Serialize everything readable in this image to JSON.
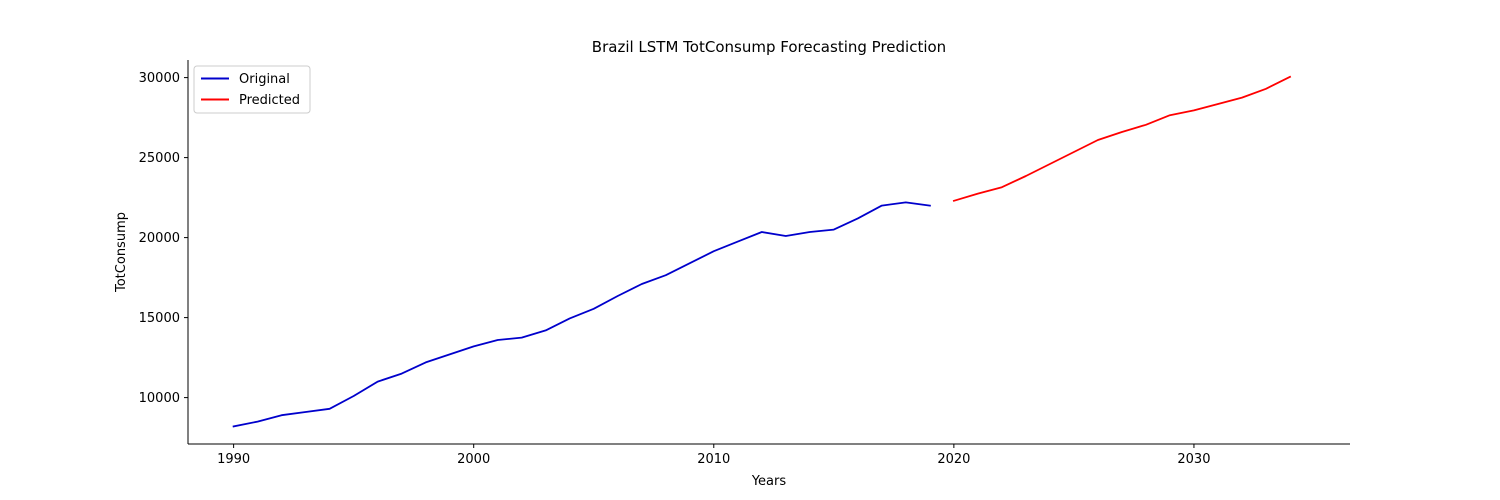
{
  "chart_data": {
    "type": "line",
    "title": "Brazil LSTM TotConsump Forecasting Prediction",
    "xlabel": "Years",
    "ylabel": "TotConsump",
    "xlim": [
      1988.1,
      2036.5
    ],
    "ylim": [
      7100,
      31100
    ],
    "xticks": [
      1990,
      2000,
      2010,
      2020,
      2030
    ],
    "yticks": [
      10000,
      15000,
      20000,
      25000,
      30000
    ],
    "grid": false,
    "legend_position": "top-left",
    "series": [
      {
        "name": "Original",
        "color": "#0000cc",
        "x": [
          1990,
          1991,
          1992,
          1993,
          1994,
          1995,
          1996,
          1997,
          1998,
          1999,
          2000,
          2001,
          2002,
          2003,
          2004,
          2005,
          2006,
          2007,
          2008,
          2009,
          2010,
          2011,
          2012,
          2013,
          2014,
          2015,
          2016,
          2017,
          2018,
          2019
        ],
        "y": [
          8200,
          8500,
          8900,
          9100,
          9300,
          10100,
          11000,
          11500,
          12200,
          12700,
          13200,
          13600,
          13750,
          14200,
          14950,
          15550,
          16350,
          17100,
          17650,
          18400,
          19150,
          19750,
          20350,
          20100,
          20350,
          20500,
          21200,
          22000,
          22200,
          22000
        ]
      },
      {
        "name": "Predicted",
        "color": "#ff0000",
        "x": [
          2020,
          2021,
          2022,
          2023,
          2024,
          2025,
          2026,
          2027,
          2028,
          2029,
          2030,
          2031,
          2032,
          2033,
          2034
        ],
        "y": [
          22300,
          22750,
          23150,
          23850,
          24600,
          25350,
          26100,
          26600,
          27050,
          27650,
          27950,
          28350,
          28750,
          29300,
          30050
        ]
      }
    ]
  }
}
